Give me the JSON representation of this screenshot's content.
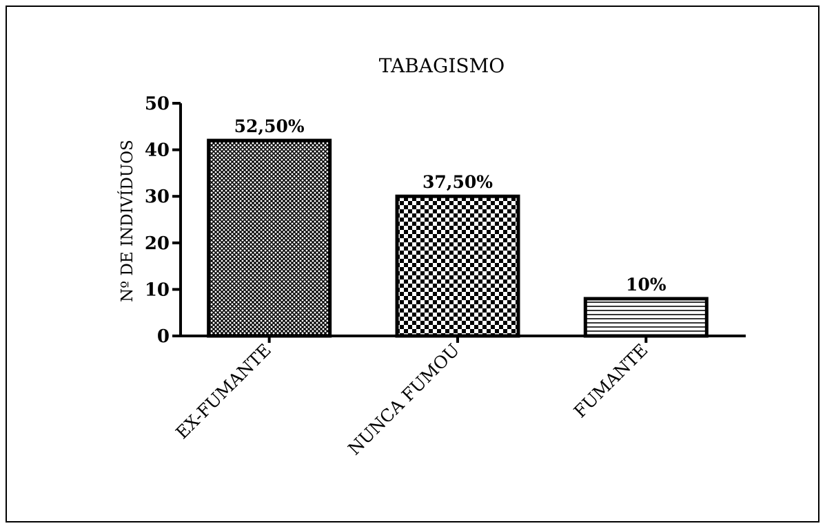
{
  "chart_data": {
    "type": "bar",
    "title": "TABAGISMO",
    "xlabel": "",
    "ylabel": "Nº DE INDIVÍDUOS",
    "ylim": [
      0,
      50
    ],
    "yticks": [
      "0",
      "10",
      "20",
      "30",
      "40",
      "50"
    ],
    "grid": false,
    "legend": "none",
    "categories": [
      "EX-FUMANTE",
      "NUNCA FUMOU",
      "FUMANTE"
    ],
    "values": [
      42,
      30,
      8
    ],
    "data_labels": [
      "52,50%",
      "37,50%",
      "10%"
    ],
    "fill_patterns": [
      "fine-crosshatch",
      "checker",
      "horizontal-lines"
    ],
    "colors": {
      "ink": "#000000",
      "background": "#ffffff"
    }
  }
}
